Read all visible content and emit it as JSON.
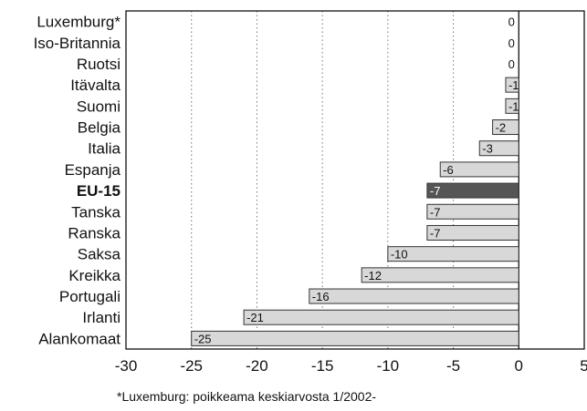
{
  "chart_data": {
    "type": "bar",
    "orientation": "horizontal",
    "categories": [
      "Luxemburg*",
      "Iso-Britannia",
      "Ruotsi",
      "Itävalta",
      "Suomi",
      "Belgia",
      "Italia",
      "Espanja",
      "EU-15",
      "Tanska",
      "Ranska",
      "Saksa",
      "Kreikka",
      "Portugali",
      "Irlanti",
      "Alankomaat"
    ],
    "values": [
      0,
      0,
      0,
      -1,
      -1,
      -2,
      -3,
      -6,
      -7,
      -7,
      -7,
      -10,
      -12,
      -16,
      -21,
      -25
    ],
    "data_labels": [
      "0",
      "0",
      "0",
      "-1",
      "-1",
      "-2",
      "-3",
      "-6",
      "-7",
      "-7",
      "-7",
      "-10",
      "-12",
      "-16",
      "-21",
      "-25"
    ],
    "highlight_category": "EU-15",
    "xlim": [
      -30,
      5
    ],
    "xticks": [
      -30,
      -25,
      -20,
      -15,
      -10,
      -5,
      0,
      5
    ],
    "xtick_labels": [
      "-30",
      "-25",
      "-20",
      "-15",
      "-10",
      "-5",
      "0",
      "5"
    ],
    "grid": "vertical dotted",
    "bar_color": "#d8d8d8",
    "highlight_color": "#555555",
    "footnote": "*Luxemburg: poikkeama keskiarvosta 1/2002-"
  }
}
